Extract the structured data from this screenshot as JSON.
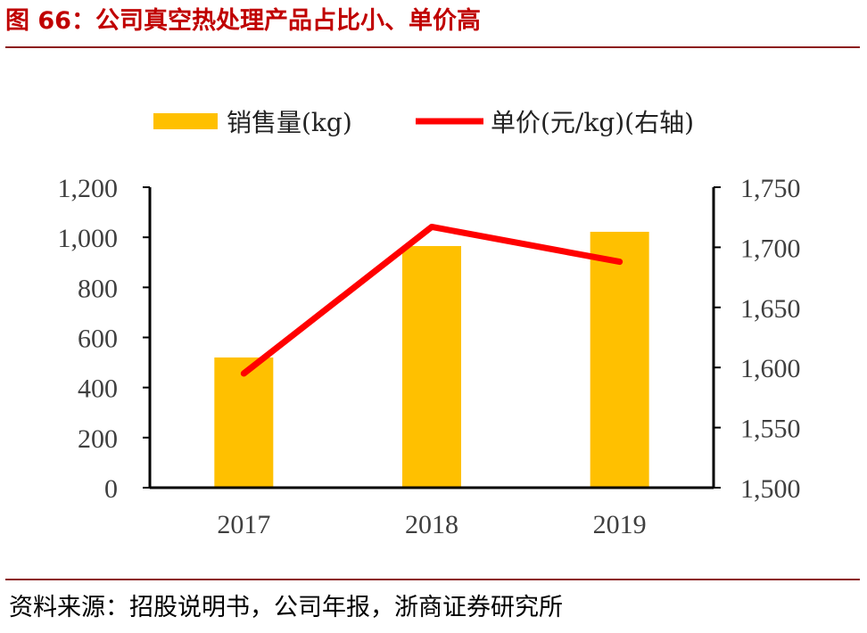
{
  "header": {
    "title": "图 66：公司真空热处理产品占比小、单价高"
  },
  "footer": {
    "source": "资料来源：招股说明书，公司年报，浙商证券研究所"
  },
  "colors": {
    "bar": "#ffc000",
    "line": "#ff0000",
    "axis": "#000000",
    "title": "#c00000"
  },
  "chart_data": {
    "type": "bar",
    "title": "",
    "categories": [
      "2017",
      "2018",
      "2019"
    ],
    "series": [
      {
        "name": "销售量(kg)",
        "type": "bar",
        "axis": "left",
        "values": [
          520,
          965,
          1022
        ]
      },
      {
        "name": "单价(元/kg)(右轴)",
        "type": "line",
        "axis": "right",
        "values": [
          1595,
          1717,
          1688
        ]
      }
    ],
    "y_left": {
      "ylim": [
        0,
        1200
      ],
      "ticks": [
        "0",
        "200",
        "400",
        "600",
        "800",
        "1,000",
        "1,200"
      ]
    },
    "y_right": {
      "ylim": [
        1500,
        1750
      ],
      "ticks": [
        "1,500",
        "1,550",
        "1,600",
        "1,650",
        "1,700",
        "1,750"
      ]
    },
    "legend_position": "top",
    "grid": false
  }
}
